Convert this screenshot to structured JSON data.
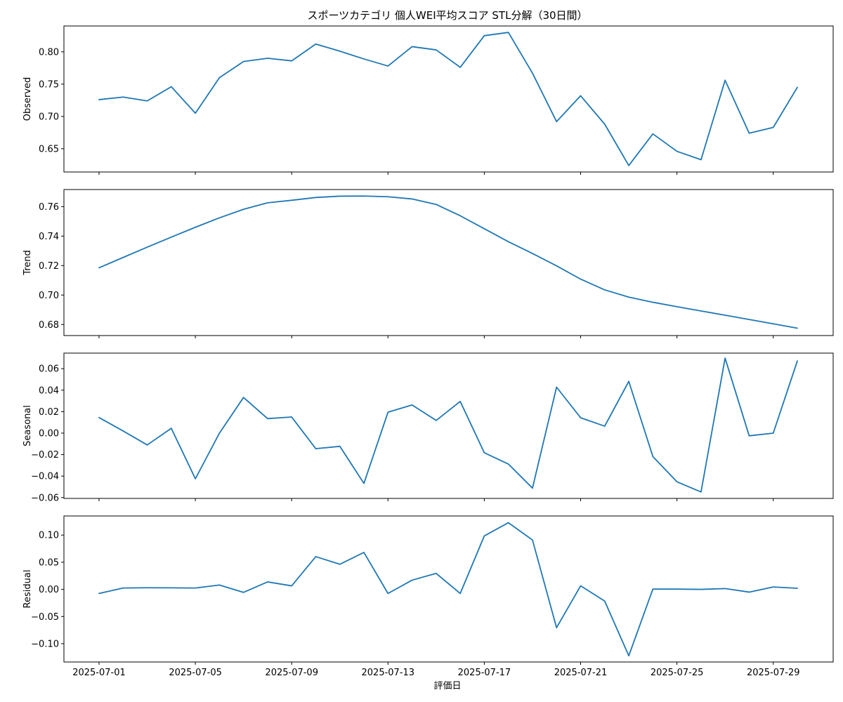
{
  "chart_data": {
    "type": "line",
    "title": "スポーツカテゴリ 個人WEI平均スコア STL分解（30日間）",
    "xlabel": "評価日",
    "dates": [
      "2025-07-01",
      "2025-07-02",
      "2025-07-03",
      "2025-07-04",
      "2025-07-05",
      "2025-07-06",
      "2025-07-07",
      "2025-07-08",
      "2025-07-09",
      "2025-07-10",
      "2025-07-11",
      "2025-07-12",
      "2025-07-13",
      "2025-07-14",
      "2025-07-15",
      "2025-07-16",
      "2025-07-17",
      "2025-07-18",
      "2025-07-19",
      "2025-07-20",
      "2025-07-21",
      "2025-07-22",
      "2025-07-23",
      "2025-07-24",
      "2025-07-25",
      "2025-07-26",
      "2025-07-27",
      "2025-07-28",
      "2025-07-29",
      "2025-07-30"
    ],
    "x_tick_labels": [
      "2025-07-01",
      "2025-07-05",
      "2025-07-09",
      "2025-07-13",
      "2025-07-17",
      "2025-07-21",
      "2025-07-25",
      "2025-07-29"
    ],
    "line_color": "#1f77b4",
    "panels": [
      {
        "ylabel": "Observed",
        "ylim": [
          0.614,
          0.84
        ],
        "yticks": [
          0.65,
          0.7,
          0.75,
          0.8
        ],
        "ytick_labels": [
          "0.65",
          "0.70",
          "0.75",
          "0.80"
        ],
        "values": [
          0.726,
          0.73,
          0.724,
          0.746,
          0.705,
          0.76,
          0.785,
          0.79,
          0.786,
          0.812,
          0.801,
          0.789,
          0.778,
          0.808,
          0.803,
          0.776,
          0.825,
          0.83,
          0.767,
          0.692,
          0.732,
          0.688,
          0.624,
          0.673,
          0.646,
          0.633,
          0.756,
          0.674,
          0.683,
          0.745
        ]
      },
      {
        "ylabel": "Trend",
        "ylim": [
          0.6725,
          0.7716
        ],
        "yticks": [
          0.68,
          0.7,
          0.72,
          0.74,
          0.76
        ],
        "ytick_labels": [
          "0.68",
          "0.70",
          "0.72",
          "0.74",
          "0.76"
        ],
        "values": [
          0.7185,
          0.7255,
          0.7325,
          0.7393,
          0.746,
          0.7524,
          0.7582,
          0.7626,
          0.7643,
          0.7662,
          0.7671,
          0.7672,
          0.7667,
          0.7652,
          0.7615,
          0.7538,
          0.745,
          0.7362,
          0.7282,
          0.7198,
          0.7108,
          0.7035,
          0.6986,
          0.6951,
          0.6921,
          0.6892,
          0.6863,
          0.6834,
          0.6805,
          0.6775
        ]
      },
      {
        "ylabel": "Seasonal",
        "ylim": [
          -0.0608,
          0.0745
        ],
        "yticks": [
          -0.06,
          -0.04,
          -0.02,
          0.0,
          0.02,
          0.04,
          0.06
        ],
        "ytick_labels": [
          "−0.06",
          "−0.04",
          "−0.02",
          "0.00",
          "0.02",
          "0.04",
          "0.06"
        ],
        "values": [
          0.0145,
          0.002,
          -0.011,
          0.0045,
          -0.0425,
          0.0,
          0.0332,
          0.0135,
          0.015,
          -0.0145,
          -0.0123,
          -0.0468,
          0.0195,
          0.0262,
          0.0118,
          0.0295,
          -0.0183,
          -0.0288,
          -0.0512,
          0.0428,
          0.0143,
          0.0065,
          0.0482,
          -0.0218,
          -0.0453,
          -0.0548,
          0.0698,
          -0.0025,
          0.0,
          0.0672
        ]
      },
      {
        "ylabel": "Residual",
        "ylim": [
          -0.1337,
          0.1352
        ],
        "yticks": [
          -0.1,
          -0.05,
          0.0,
          0.05,
          0.1
        ],
        "ytick_labels": [
          "−0.10",
          "−0.05",
          "0.00",
          "0.05",
          "0.10"
        ],
        "values": [
          -0.0075,
          0.0025,
          0.003,
          0.0028,
          0.0025,
          0.008,
          -0.0055,
          0.0138,
          0.0065,
          0.0603,
          0.0463,
          0.068,
          -0.0075,
          0.017,
          0.0295,
          -0.0075,
          0.0985,
          0.1228,
          0.091,
          -0.0705,
          0.0065,
          -0.0215,
          -0.1223,
          0.0005,
          0.0005,
          0.0,
          0.0015,
          -0.005,
          0.0045,
          0.002
        ]
      }
    ]
  }
}
